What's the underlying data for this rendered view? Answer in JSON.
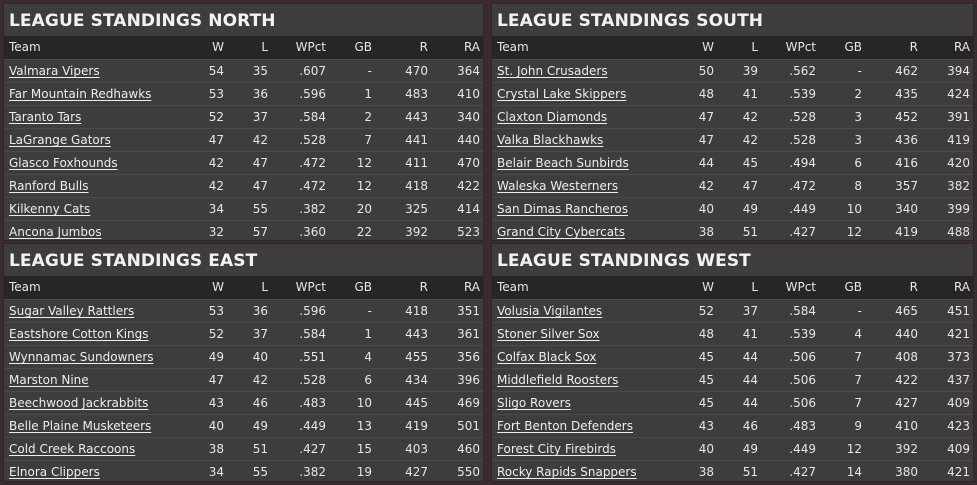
{
  "columns": {
    "team": "Team",
    "w": "W",
    "l": "L",
    "pct": "WPct",
    "gb": "GB",
    "r": "R",
    "ra": "RA"
  },
  "divisions": [
    {
      "title": "LEAGUE STANDINGS NORTH",
      "rows": [
        {
          "team": "Valmara Vipers",
          "w": "54",
          "l": "35",
          "pct": ".607",
          "gb": "-",
          "r": "470",
          "ra": "364"
        },
        {
          "team": "Far Mountain Redhawks",
          "w": "53",
          "l": "36",
          "pct": ".596",
          "gb": "1",
          "r": "483",
          "ra": "410"
        },
        {
          "team": "Taranto Tars",
          "w": "52",
          "l": "37",
          "pct": ".584",
          "gb": "2",
          "r": "443",
          "ra": "340"
        },
        {
          "team": "LaGrange Gators",
          "w": "47",
          "l": "42",
          "pct": ".528",
          "gb": "7",
          "r": "441",
          "ra": "440"
        },
        {
          "team": "Glasco Foxhounds",
          "w": "42",
          "l": "47",
          "pct": ".472",
          "gb": "12",
          "r": "411",
          "ra": "470"
        },
        {
          "team": "Ranford Bulls",
          "w": "42",
          "l": "47",
          "pct": ".472",
          "gb": "12",
          "r": "418",
          "ra": "422"
        },
        {
          "team": "Kilkenny Cats",
          "w": "34",
          "l": "55",
          "pct": ".382",
          "gb": "20",
          "r": "325",
          "ra": "414"
        },
        {
          "team": "Ancona Jumbos",
          "w": "32",
          "l": "57",
          "pct": ".360",
          "gb": "22",
          "r": "392",
          "ra": "523"
        }
      ]
    },
    {
      "title": "LEAGUE STANDINGS SOUTH",
      "rows": [
        {
          "team": "St. John Crusaders",
          "w": "50",
          "l": "39",
          "pct": ".562",
          "gb": "-",
          "r": "462",
          "ra": "394"
        },
        {
          "team": "Crystal Lake Skippers",
          "w": "48",
          "l": "41",
          "pct": ".539",
          "gb": "2",
          "r": "435",
          "ra": "424"
        },
        {
          "team": "Claxton Diamonds",
          "w": "47",
          "l": "42",
          "pct": ".528",
          "gb": "3",
          "r": "452",
          "ra": "391"
        },
        {
          "team": "Valka Blackhawks",
          "w": "47",
          "l": "42",
          "pct": ".528",
          "gb": "3",
          "r": "436",
          "ra": "419"
        },
        {
          "team": "Belair Beach Sunbirds",
          "w": "44",
          "l": "45",
          "pct": ".494",
          "gb": "6",
          "r": "416",
          "ra": "420"
        },
        {
          "team": "Waleska Westerners",
          "w": "42",
          "l": "47",
          "pct": ".472",
          "gb": "8",
          "r": "357",
          "ra": "382"
        },
        {
          "team": "San Dimas Rancheros",
          "w": "40",
          "l": "49",
          "pct": ".449",
          "gb": "10",
          "r": "340",
          "ra": "399"
        },
        {
          "team": "Grand City Cybercats",
          "w": "38",
          "l": "51",
          "pct": ".427",
          "gb": "12",
          "r": "419",
          "ra": "488"
        }
      ]
    },
    {
      "title": "LEAGUE STANDINGS EAST",
      "rows": [
        {
          "team": "Sugar Valley Rattlers",
          "w": "53",
          "l": "36",
          "pct": ".596",
          "gb": "-",
          "r": "418",
          "ra": "351"
        },
        {
          "team": "Eastshore Cotton Kings",
          "w": "52",
          "l": "37",
          "pct": ".584",
          "gb": "1",
          "r": "443",
          "ra": "361"
        },
        {
          "team": "Wynnamac Sundowners",
          "w": "49",
          "l": "40",
          "pct": ".551",
          "gb": "4",
          "r": "455",
          "ra": "356"
        },
        {
          "team": "Marston Nine",
          "w": "47",
          "l": "42",
          "pct": ".528",
          "gb": "6",
          "r": "434",
          "ra": "396"
        },
        {
          "team": "Beechwood Jackrabbits",
          "w": "43",
          "l": "46",
          "pct": ".483",
          "gb": "10",
          "r": "445",
          "ra": "469"
        },
        {
          "team": "Belle Plaine Musketeers",
          "w": "40",
          "l": "49",
          "pct": ".449",
          "gb": "13",
          "r": "419",
          "ra": "501"
        },
        {
          "team": "Cold Creek Raccoons",
          "w": "38",
          "l": "51",
          "pct": ".427",
          "gb": "15",
          "r": "403",
          "ra": "460"
        },
        {
          "team": "Elnora Clippers",
          "w": "34",
          "l": "55",
          "pct": ".382",
          "gb": "19",
          "r": "427",
          "ra": "550"
        }
      ]
    },
    {
      "title": "LEAGUE STANDINGS WEST",
      "rows": [
        {
          "team": "Volusia Vigilantes",
          "w": "52",
          "l": "37",
          "pct": ".584",
          "gb": "-",
          "r": "465",
          "ra": "451"
        },
        {
          "team": "Stoner Silver Sox",
          "w": "48",
          "l": "41",
          "pct": ".539",
          "gb": "4",
          "r": "440",
          "ra": "421"
        },
        {
          "team": "Colfax Black Sox",
          "w": "45",
          "l": "44",
          "pct": ".506",
          "gb": "7",
          "r": "408",
          "ra": "373"
        },
        {
          "team": "Middlefield Roosters",
          "w": "45",
          "l": "44",
          "pct": ".506",
          "gb": "7",
          "r": "422",
          "ra": "437"
        },
        {
          "team": "Sligo Rovers",
          "w": "45",
          "l": "44",
          "pct": ".506",
          "gb": "7",
          "r": "427",
          "ra": "409"
        },
        {
          "team": "Fort Benton Defenders",
          "w": "43",
          "l": "46",
          "pct": ".483",
          "gb": "9",
          "r": "410",
          "ra": "423"
        },
        {
          "team": "Forest City Firebirds",
          "w": "40",
          "l": "49",
          "pct": ".449",
          "gb": "12",
          "r": "392",
          "ra": "409"
        },
        {
          "team": "Rocky Rapids Snappers",
          "w": "38",
          "l": "51",
          "pct": ".427",
          "gb": "14",
          "r": "380",
          "ra": "421"
        }
      ]
    }
  ]
}
